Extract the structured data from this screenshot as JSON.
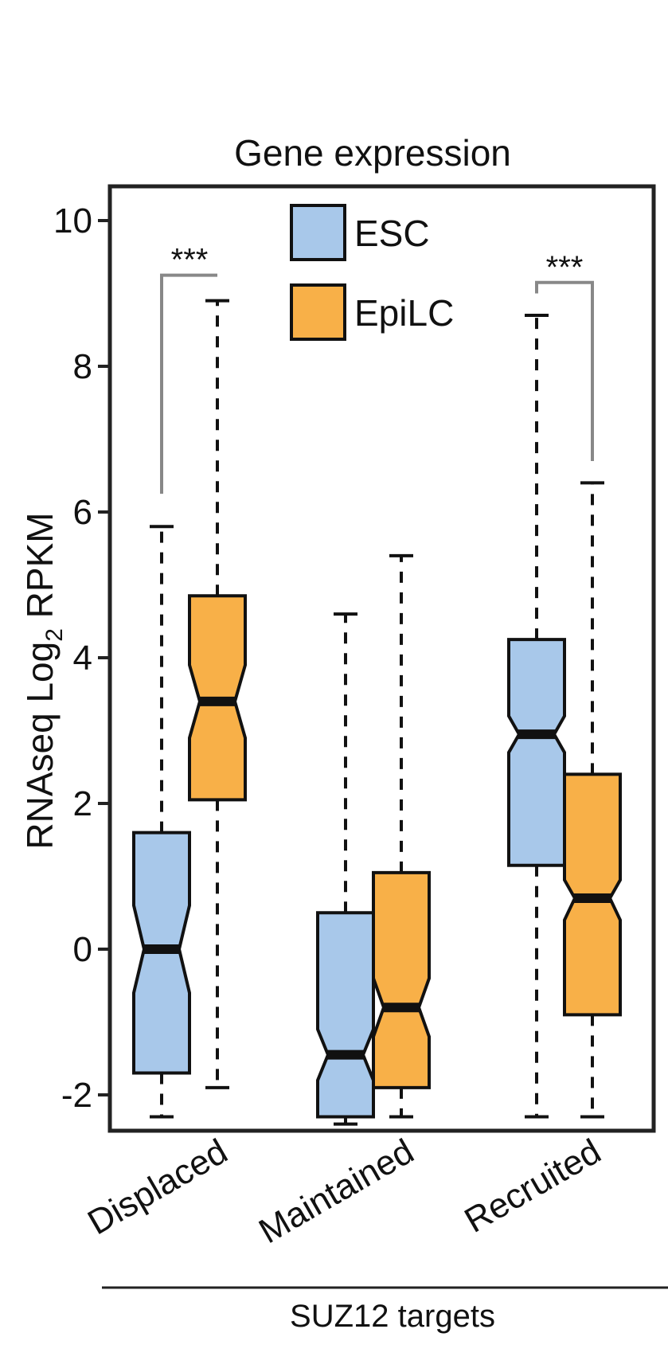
{
  "chart_data": {
    "type": "boxplot",
    "title": "Gene expression",
    "ylabel_main": "RNAseq Log",
    "ylabel_sub": "2",
    "ylabel_tail": " RPKM",
    "ylim": [
      -2.5,
      10.5
    ],
    "yticks": [
      -2,
      0,
      2,
      4,
      6,
      8,
      10
    ],
    "ytick_labels": [
      "-2",
      "0",
      "2",
      "4",
      "6",
      "8",
      "10"
    ],
    "categories": [
      "Displaced",
      "Maintained",
      "Recruited"
    ],
    "group_label": "SUZ12 targets",
    "legend_position": "top-center",
    "grid": false,
    "series": [
      {
        "name": "ESC",
        "color": "#a8c8ea",
        "boxes": [
          {
            "whisker_low": -2.3,
            "q1": -1.7,
            "notch_low": -0.6,
            "median": 0.0,
            "notch_high": 0.6,
            "q3": 1.6,
            "whisker_high": 5.8
          },
          {
            "whisker_low": -2.4,
            "q1": -2.3,
            "notch_low": -1.8,
            "median": -1.45,
            "notch_high": -1.1,
            "q3": 0.5,
            "whisker_high": 4.6
          },
          {
            "whisker_low": -2.3,
            "q1": 1.15,
            "notch_low": 2.7,
            "median": 2.95,
            "notch_high": 3.2,
            "q3": 4.25,
            "whisker_high": 8.7
          }
        ]
      },
      {
        "name": "EpiLC",
        "color": "#f8b048",
        "boxes": [
          {
            "whisker_low": -1.9,
            "q1": 2.05,
            "notch_low": 2.9,
            "median": 3.4,
            "notch_high": 3.9,
            "q3": 4.85,
            "whisker_high": 8.9
          },
          {
            "whisker_low": -2.3,
            "q1": -1.9,
            "notch_low": -1.2,
            "median": -0.8,
            "notch_high": -0.4,
            "q3": 1.05,
            "whisker_high": 5.4
          },
          {
            "whisker_low": -2.3,
            "q1": -0.9,
            "notch_low": 0.4,
            "median": 0.7,
            "notch_high": 0.95,
            "q3": 2.4,
            "whisker_high": 6.4
          }
        ]
      }
    ],
    "significance": [
      {
        "category": "Displaced",
        "label": "***",
        "left_y": 6.25,
        "right_y": 9.25,
        "top_y": 9.25
      },
      {
        "category": "Recruited",
        "label": "***",
        "left_y": 9.0,
        "right_y": 6.7,
        "top_y": 9.15
      }
    ]
  }
}
